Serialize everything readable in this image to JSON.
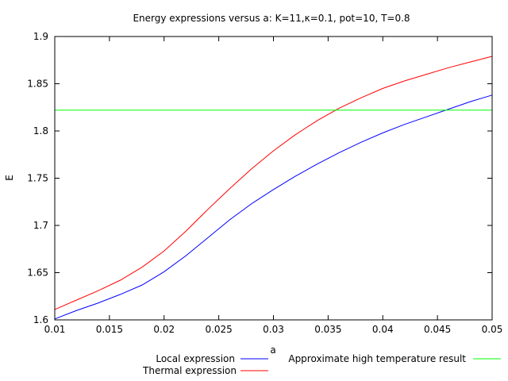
{
  "chart_data": {
    "type": "line",
    "title": "Energy expressions versus a: K=11,κ=0.1, pot=10, T=0.8",
    "xlabel": "a",
    "ylabel": "E",
    "xlim": [
      0.01,
      0.05
    ],
    "ylim": [
      1.6,
      1.9
    ],
    "xticks": [
      "0.01",
      "0.015",
      "0.02",
      "0.025",
      "0.03",
      "0.035",
      "0.04",
      "0.045",
      "0.05"
    ],
    "yticks": [
      "1.6",
      "1.65",
      "1.7",
      "1.75",
      "1.8",
      "1.85",
      "1.9"
    ],
    "grid": false,
    "legend_position": "bottom",
    "series": [
      {
        "name": "Local expression",
        "color": "#0000ff",
        "x": [
          0.01,
          0.012,
          0.014,
          0.016,
          0.018,
          0.02,
          0.022,
          0.024,
          0.026,
          0.028,
          0.03,
          0.032,
          0.034,
          0.036,
          0.038,
          0.04,
          0.042,
          0.044,
          0.046,
          0.048,
          0.05
        ],
        "y": [
          1.601,
          1.61,
          1.618,
          1.627,
          1.637,
          1.651,
          1.668,
          1.687,
          1.706,
          1.723,
          1.738,
          1.752,
          1.765,
          1.777,
          1.788,
          1.798,
          1.807,
          1.815,
          1.823,
          1.831,
          1.838
        ]
      },
      {
        "name": "Thermal expression",
        "color": "#ff0000",
        "x": [
          0.01,
          0.012,
          0.014,
          0.016,
          0.018,
          0.02,
          0.022,
          0.024,
          0.026,
          0.028,
          0.03,
          0.032,
          0.034,
          0.036,
          0.038,
          0.04,
          0.042,
          0.044,
          0.046,
          0.048,
          0.05
        ],
        "y": [
          1.611,
          1.621,
          1.631,
          1.642,
          1.656,
          1.673,
          1.694,
          1.717,
          1.739,
          1.76,
          1.779,
          1.796,
          1.811,
          1.824,
          1.835,
          1.845,
          1.853,
          1.86,
          1.867,
          1.873,
          1.879
        ]
      },
      {
        "name": "Approximate high temperature result",
        "color": "#00ff00",
        "x": [
          0.01,
          0.05
        ],
        "y": [
          1.822,
          1.822
        ]
      }
    ]
  }
}
